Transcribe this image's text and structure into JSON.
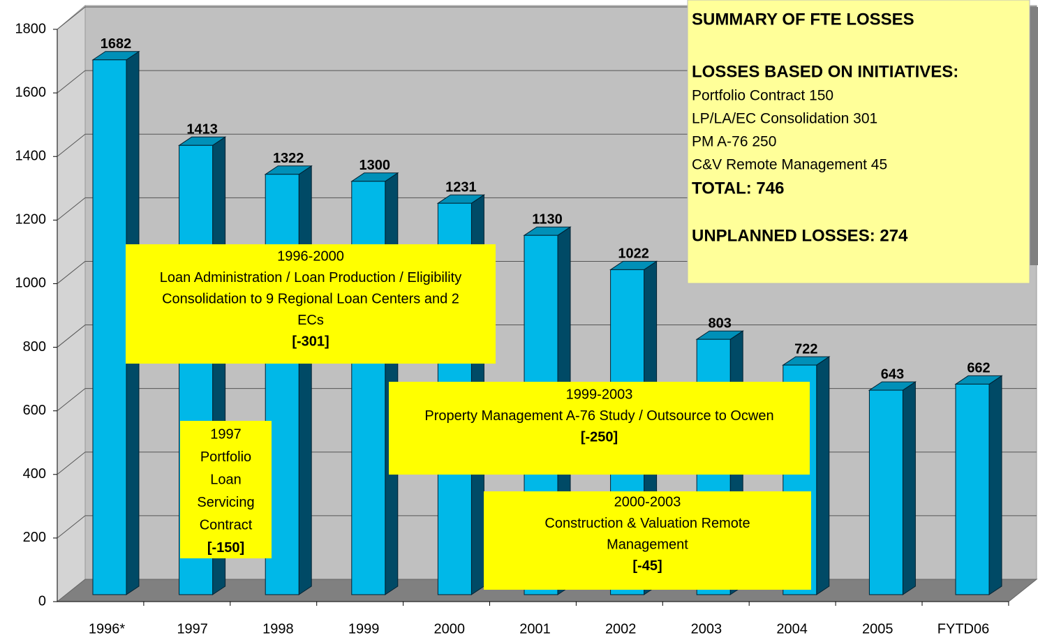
{
  "chart_data": {
    "type": "bar3d",
    "categories": [
      "1996*",
      "1997",
      "1998",
      "1999",
      "2000",
      "2001",
      "2002",
      "2003",
      "2004",
      "2005",
      "FYTD06"
    ],
    "values": [
      1682,
      1413,
      1322,
      1300,
      1231,
      1130,
      1022,
      803,
      722,
      643,
      662
    ],
    "color": "#00b8e8",
    "ylim": [
      0,
      1800
    ],
    "yticks": [
      0,
      200,
      400,
      600,
      800,
      1000,
      1200,
      1400,
      1600,
      1800
    ],
    "grid": true,
    "annotations": [
      {
        "lines": [
          "1996-2000",
          "Loan Administration / Loan Production / Eligibility",
          "Consolidation to 9 Regional Loan Centers and 2",
          "ECs"
        ],
        "amount": "[-301]"
      },
      {
        "lines": [
          "1997",
          "Portfolio",
          "Loan",
          "Servicing",
          "Contract"
        ],
        "amount": "[-150]"
      },
      {
        "lines": [
          "1999-2003",
          "Property Management A-76 Study / Outsource to Ocwen"
        ],
        "amount": "[-250]"
      },
      {
        "lines": [
          "2000-2003",
          "Construction & Valuation Remote",
          "Management"
        ],
        "amount": "[-45]"
      }
    ],
    "summary": {
      "title": "SUMMARY OF FTE LOSSES",
      "heading": "LOSSES BASED ON INITIATIVES:",
      "items": [
        "Portfolio Contract 150",
        "LP/LA/EC Consolidation 301",
        "PM A-76 250",
        "C&V Remote Management 45"
      ],
      "total": "TOTAL:  746",
      "unplanned": "UNPLANNED LOSSES: 274"
    }
  }
}
